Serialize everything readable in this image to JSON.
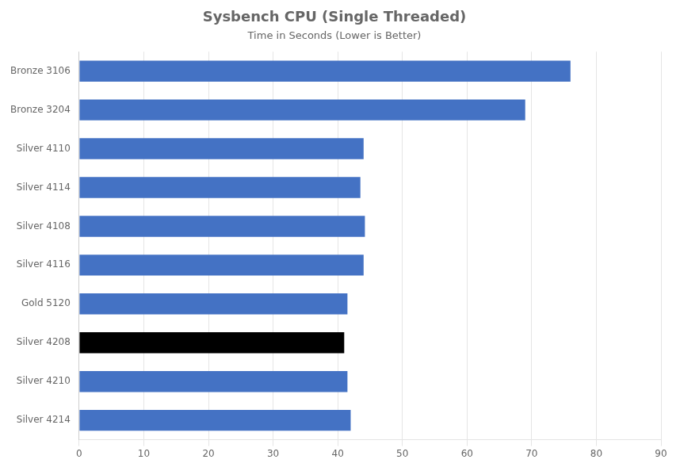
{
  "chart_data": {
    "type": "bar",
    "orientation": "horizontal",
    "title": "Sysbench CPU (Single Threaded)",
    "subtitle": "Time in Seconds (Lower is Better)",
    "categories": [
      "Bronze 3106",
      "Bronze 3204",
      "Silver 4110",
      "Silver 4114",
      "Silver 4108",
      "Silver 4116",
      "Gold 5120",
      "Silver 4208",
      "Silver 4210",
      "Silver 4214"
    ],
    "values": [
      76.0,
      69.0,
      44.0,
      43.5,
      44.2,
      44.0,
      41.5,
      41.0,
      41.5,
      42.0
    ],
    "colors": [
      "#4472C4",
      "#4472C4",
      "#4472C4",
      "#4472C4",
      "#4472C4",
      "#4472C4",
      "#4472C4",
      "#000000",
      "#4472C4",
      "#4472C4"
    ],
    "xlim": [
      0,
      90
    ],
    "xticks": [
      0,
      10,
      20,
      30,
      40,
      50,
      60,
      70,
      80,
      90
    ],
    "grid": true
  }
}
